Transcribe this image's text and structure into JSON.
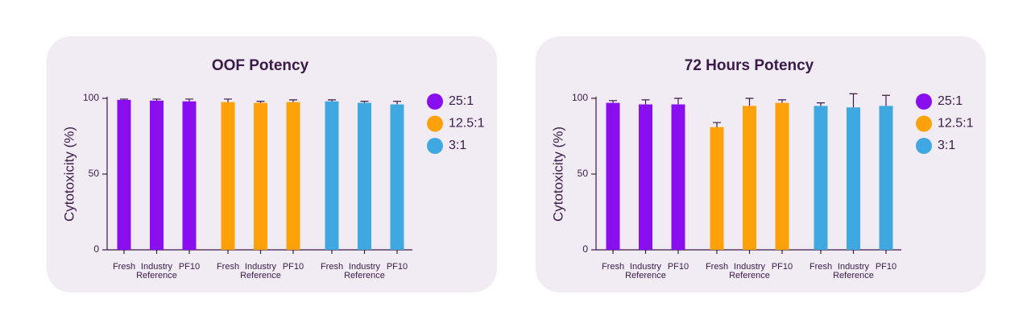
{
  "chart_data": [
    {
      "type": "bar",
      "title": "OOF Potency",
      "y_label": "Cytotoxicity (%)",
      "categories": [
        "Fresh",
        "Industry Reference",
        "PF10"
      ],
      "series": [
        {
          "name": "25:1",
          "color": "#8a0ff0",
          "values": [
            99,
            98.5,
            98
          ],
          "errors": [
            0.5,
            1,
            1.5
          ]
        },
        {
          "name": "12.5:1",
          "color": "#ffa10a",
          "values": [
            97.5,
            97,
            97.5
          ],
          "errors": [
            2,
            1,
            1.5
          ]
        },
        {
          "name": "3:1",
          "color": "#40a8e0",
          "values": [
            98,
            97,
            96
          ],
          "errors": [
            1,
            1,
            2
          ]
        }
      ],
      "ylim": [
        0,
        100
      ],
      "yticks": [
        0,
        50,
        100
      ]
    },
    {
      "type": "bar",
      "title": "72 Hours Potency",
      "y_label": "Cytotoxicity (%)",
      "categories": [
        "Fresh",
        "Industry Reference",
        "PF10"
      ],
      "series": [
        {
          "name": "25:1",
          "color": "#8a0ff0",
          "values": [
            97,
            96,
            96
          ],
          "errors": [
            1.5,
            3,
            4
          ]
        },
        {
          "name": "12.5:1",
          "color": "#ffa10a",
          "values": [
            81,
            95,
            97
          ],
          "errors": [
            3,
            5,
            2
          ]
        },
        {
          "name": "3:1",
          "color": "#40a8e0",
          "values": [
            95,
            94,
            95
          ],
          "errors": [
            2,
            9,
            7
          ]
        }
      ],
      "ylim": [
        0,
        100
      ],
      "yticks": [
        0,
        50,
        100
      ]
    }
  ]
}
